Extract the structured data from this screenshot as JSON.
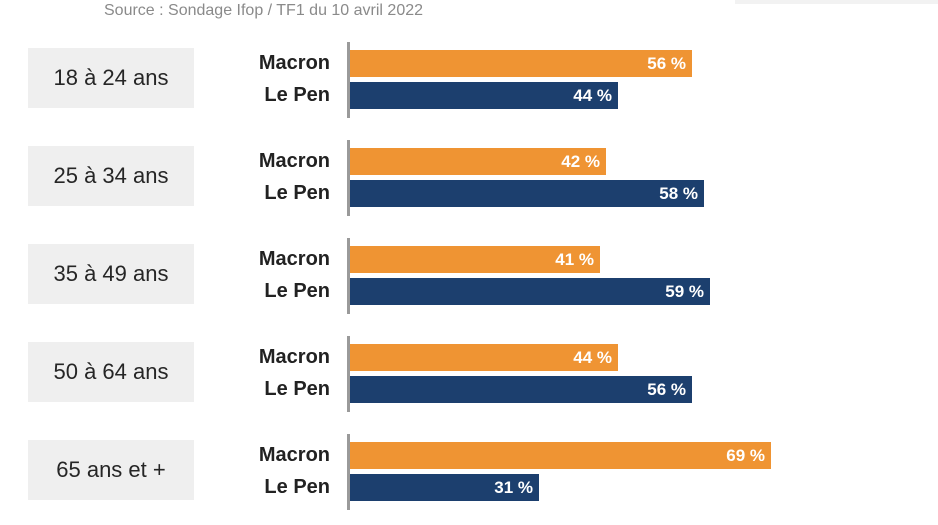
{
  "source": "Source : Sondage Ifop / TF1 du 10 avril 2022",
  "colors": {
    "macron": "#ef9433",
    "lepen": "#1c3f6e"
  },
  "chart_data": {
    "type": "bar",
    "orientation": "horizontal",
    "categories": [
      "18 à 24 ans",
      "25 à 34 ans",
      "35 à 49 ans",
      "50 à 64 ans",
      "65 ans et +"
    ],
    "series": [
      {
        "name": "Macron",
        "values": [
          56,
          42,
          41,
          44,
          69
        ],
        "labels": [
          "56 %",
          "42 %",
          "41 %",
          "44 %",
          "69 %"
        ]
      },
      {
        "name": "Le Pen",
        "values": [
          44,
          58,
          59,
          56,
          31
        ],
        "labels": [
          "44 %",
          "58 %",
          "59 %",
          "56 %",
          "31 %"
        ]
      }
    ],
    "xlim": [
      0,
      100
    ],
    "grid": false
  }
}
